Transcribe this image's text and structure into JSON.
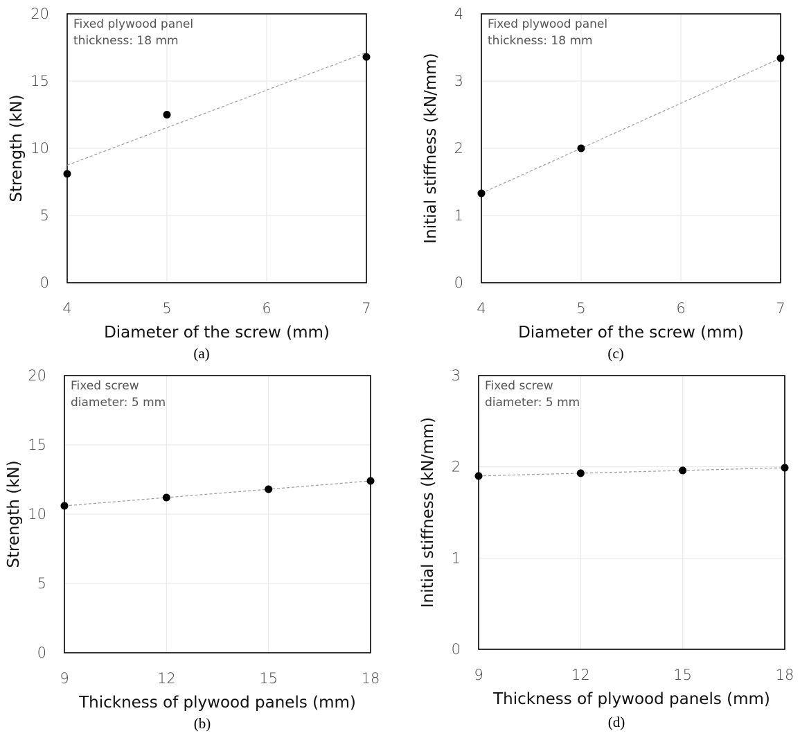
{
  "chart_data": [
    {
      "type": "scatter",
      "caption": "(a)",
      "annotation": [
        "Fixed plywood panel",
        "thickness: 18 mm"
      ],
      "xlabel": "Diameter of the screw (mm)",
      "ylabel": "Strength (kN)",
      "xlim": [
        4,
        7
      ],
      "ylim": [
        0,
        20
      ],
      "xticks": [
        4,
        5,
        6,
        7
      ],
      "yticks": [
        0,
        5,
        10,
        15,
        20
      ],
      "x": [
        4,
        5,
        7
      ],
      "y": [
        8.1,
        12.5,
        16.8
      ],
      "trendline": true,
      "grid": true
    },
    {
      "type": "scatter",
      "caption": "(b)",
      "annotation": [
        "Fixed screw",
        "diameter: 5 mm"
      ],
      "xlabel": "Thickness of plywood panels (mm)",
      "ylabel": "Strength (kN)",
      "xlim": [
        9,
        18
      ],
      "ylim": [
        0,
        20
      ],
      "xticks": [
        9,
        12,
        15,
        18
      ],
      "yticks": [
        0,
        5,
        10,
        15,
        20
      ],
      "x": [
        9,
        12,
        15,
        18
      ],
      "y": [
        10.6,
        11.2,
        11.8,
        12.4
      ],
      "trendline": true,
      "grid": true
    },
    {
      "type": "scatter",
      "caption": "(c)",
      "annotation": [
        "Fixed plywood panel",
        "thickness: 18 mm"
      ],
      "xlabel": "Diameter of the screw (mm)",
      "ylabel": "Initial stiffness (kN/mm)",
      "xlim": [
        4,
        7
      ],
      "ylim": [
        0,
        4
      ],
      "xticks": [
        4,
        5,
        6,
        7
      ],
      "yticks": [
        0,
        1,
        2,
        3,
        4
      ],
      "x": [
        4,
        5,
        7
      ],
      "y": [
        1.33,
        2.0,
        3.34
      ],
      "trendline": true,
      "grid": true
    },
    {
      "type": "scatter",
      "caption": "(d)",
      "annotation": [
        "Fixed screw",
        "diameter: 5 mm"
      ],
      "xlabel": "Thickness of plywood panels (mm)",
      "ylabel": "Initial stiffness (kN/mm)",
      "xlim": [
        9,
        18
      ],
      "ylim": [
        0,
        3
      ],
      "xticks": [
        9,
        12,
        15,
        18
      ],
      "yticks": [
        0,
        1,
        2,
        3
      ],
      "x": [
        9,
        12,
        15,
        18
      ],
      "y": [
        1.9,
        1.93,
        1.96,
        1.99
      ],
      "trendline": true,
      "grid": true
    }
  ]
}
